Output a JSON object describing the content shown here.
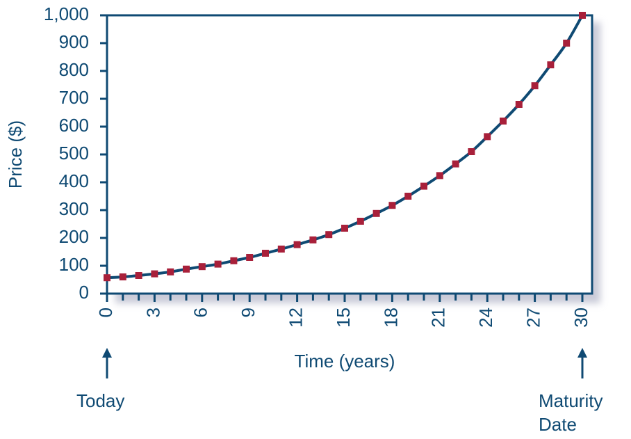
{
  "chart_data": {
    "type": "line",
    "xlabel": "Time (years)",
    "ylabel": "Price ($)",
    "xlim": [
      0,
      30
    ],
    "ylim": [
      0,
      1000
    ],
    "x_ticks": [
      0,
      3,
      6,
      9,
      12,
      15,
      18,
      21,
      24,
      27,
      30
    ],
    "y_ticks": [
      "0",
      "100",
      "200",
      "300",
      "400",
      "500",
      "600",
      "700",
      "800",
      "900",
      "1,000"
    ],
    "y_tick_values": [
      0,
      100,
      200,
      300,
      400,
      500,
      600,
      700,
      800,
      900,
      1000
    ],
    "grid": false,
    "series": [
      {
        "x": [
          0,
          1,
          2,
          3,
          4,
          5,
          6,
          7,
          8,
          9,
          10,
          11,
          12,
          13,
          14,
          15,
          16,
          17,
          18,
          19,
          20,
          21,
          22,
          23,
          24,
          25,
          26,
          27,
          28,
          29,
          30
        ],
        "values": [
          57,
          60,
          65,
          71,
          78,
          88,
          97,
          106,
          118,
          130,
          145,
          160,
          176,
          193,
          212,
          235,
          260,
          288,
          317,
          350,
          386,
          424,
          466,
          510,
          564,
          620,
          680,
          747,
          822,
          900,
          1000
        ]
      }
    ],
    "annotations": {
      "today": "Today",
      "maturity_line1": "Maturity",
      "maturity_line2": "Date"
    },
    "colors": {
      "line": "#0f4a73",
      "marker": "#a8203a",
      "axis": "#0f4a73",
      "text": "#0f4a73",
      "shadow": "#c9cbd8"
    }
  }
}
